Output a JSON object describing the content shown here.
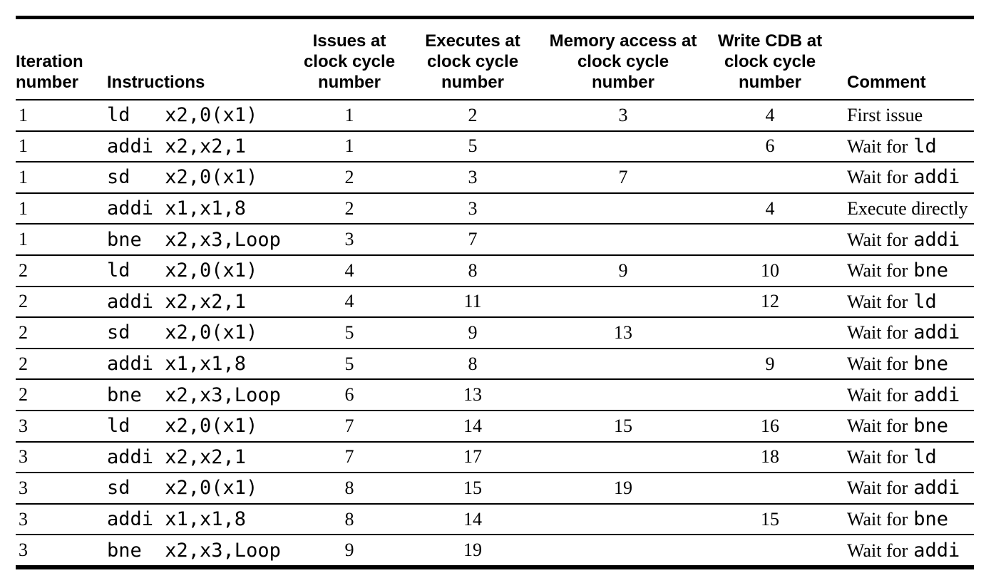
{
  "table": {
    "headers": [
      {
        "label": "Iteration\nnumber"
      },
      {
        "label": "Instructions"
      },
      {
        "label": "Issues at\nclock cycle\nnumber"
      },
      {
        "label": "Executes at\nclock cycle\nnumber"
      },
      {
        "label": "Memory access at\nclock cycle\nnumber"
      },
      {
        "label": "Write CDB at\nclock cycle\nnumber"
      },
      {
        "label": "Comment"
      }
    ],
    "rows": [
      {
        "iteration": "1",
        "instruction": "ld   x2,0(x1)",
        "issues": "1",
        "executes": "2",
        "memory": "3",
        "write_cdb": "4",
        "comment": {
          "text": "First issue",
          "code": ""
        }
      },
      {
        "iteration": "1",
        "instruction": "addi x2,x2,1",
        "issues": "1",
        "executes": "5",
        "memory": "",
        "write_cdb": "6",
        "comment": {
          "text": "Wait for",
          "code": "ld"
        }
      },
      {
        "iteration": "1",
        "instruction": "sd   x2,0(x1)",
        "issues": "2",
        "executes": "3",
        "memory": "7",
        "write_cdb": "",
        "comment": {
          "text": "Wait for",
          "code": "addi"
        }
      },
      {
        "iteration": "1",
        "instruction": "addi x1,x1,8",
        "issues": "2",
        "executes": "3",
        "memory": "",
        "write_cdb": "4",
        "comment": {
          "text": "Execute directly",
          "code": ""
        }
      },
      {
        "iteration": "1",
        "instruction": "bne  x2,x3,Loop",
        "issues": "3",
        "executes": "7",
        "memory": "",
        "write_cdb": "",
        "comment": {
          "text": "Wait for",
          "code": "addi"
        }
      },
      {
        "iteration": "2",
        "instruction": "ld   x2,0(x1)",
        "issues": "4",
        "executes": "8",
        "memory": "9",
        "write_cdb": "10",
        "comment": {
          "text": "Wait for",
          "code": "bne"
        }
      },
      {
        "iteration": "2",
        "instruction": "addi x2,x2,1",
        "issues": "4",
        "executes": "11",
        "memory": "",
        "write_cdb": "12",
        "comment": {
          "text": "Wait for",
          "code": "ld"
        }
      },
      {
        "iteration": "2",
        "instruction": "sd   x2,0(x1)",
        "issues": "5",
        "executes": "9",
        "memory": "13",
        "write_cdb": "",
        "comment": {
          "text": "Wait for",
          "code": "addi"
        }
      },
      {
        "iteration": "2",
        "instruction": "addi x1,x1,8",
        "issues": "5",
        "executes": "8",
        "memory": "",
        "write_cdb": "9",
        "comment": {
          "text": "Wait for",
          "code": "bne"
        }
      },
      {
        "iteration": "2",
        "instruction": "bne  x2,x3,Loop",
        "issues": "6",
        "executes": "13",
        "memory": "",
        "write_cdb": "",
        "comment": {
          "text": "Wait for",
          "code": "addi"
        }
      },
      {
        "iteration": "3",
        "instruction": "ld   x2,0(x1)",
        "issues": "7",
        "executes": "14",
        "memory": "15",
        "write_cdb": "16",
        "comment": {
          "text": "Wait for",
          "code": "bne"
        }
      },
      {
        "iteration": "3",
        "instruction": "addi x2,x2,1",
        "issues": "7",
        "executes": "17",
        "memory": "",
        "write_cdb": "18",
        "comment": {
          "text": "Wait for",
          "code": "ld"
        }
      },
      {
        "iteration": "3",
        "instruction": "sd   x2,0(x1)",
        "issues": "8",
        "executes": "15",
        "memory": "19",
        "write_cdb": "",
        "comment": {
          "text": "Wait for",
          "code": "addi"
        }
      },
      {
        "iteration": "3",
        "instruction": "addi x1,x1,8",
        "issues": "8",
        "executes": "14",
        "memory": "",
        "write_cdb": "15",
        "comment": {
          "text": "Wait for",
          "code": "bne"
        }
      },
      {
        "iteration": "3",
        "instruction": "bne  x2,x3,Loop",
        "issues": "9",
        "executes": "19",
        "memory": "",
        "write_cdb": "",
        "comment": {
          "text": "Wait for",
          "code": "addi"
        }
      }
    ]
  },
  "colors": {
    "text": "#000000",
    "background": "#ffffff",
    "rule": "#000000"
  }
}
